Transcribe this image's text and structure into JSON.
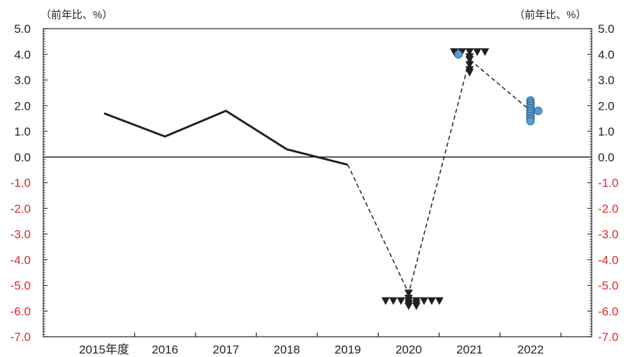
{
  "unit_label_left": "（前年比、%）",
  "unit_label_right": "（前年比、%）",
  "chart_data": {
    "type": "line",
    "x_categories": [
      "2015年度",
      "2016",
      "2017",
      "2018",
      "2019",
      "2020",
      "2021",
      "2022"
    ],
    "ylim": [
      -7.0,
      5.0
    ],
    "yticks": [
      5.0,
      4.0,
      3.0,
      2.0,
      1.0,
      0.0,
      -1.0,
      -2.0,
      -3.0,
      -4.0,
      -5.0,
      -6.0,
      -7.0
    ],
    "ytick_labels": [
      "5.0",
      "4.0",
      "3.0",
      "2.0",
      "1.0",
      "0.0",
      "-1.0",
      "-2.0",
      "-3.0",
      "-4.0",
      "-5.0",
      "-6.0",
      "-7.0"
    ],
    "colors": {
      "actual": "#231f20",
      "negative_tick": "#d7282f",
      "circle_fill": "#5b9bd5",
      "circle_stroke": "#2f5f8f",
      "triangle": "#231f20"
    },
    "series": [
      {
        "style": "solid",
        "x": [
          "2015年度",
          "2016",
          "2017",
          "2018",
          "2019"
        ],
        "values": [
          1.7,
          0.8,
          1.8,
          0.3,
          -0.3
        ]
      },
      {
        "style": "dashed",
        "x": [
          "2019",
          "2020",
          "2021",
          "2022"
        ],
        "values": [
          -0.3,
          -5.3,
          3.8,
          1.8
        ]
      }
    ],
    "triangle_markers": [
      {
        "x": "2020",
        "values": [
          -5.3,
          -5.5,
          -5.6,
          -5.6,
          -5.6,
          -5.6,
          -5.6,
          -5.6,
          -5.6,
          -5.6,
          -5.7,
          -5.7,
          -5.8,
          -5.8
        ]
      },
      {
        "x": "2021",
        "values": [
          4.1,
          4.1,
          4.1,
          4.1,
          4.1,
          3.9,
          3.8,
          3.6,
          3.4,
          3.3
        ]
      },
      {
        "x": "2022",
        "values": [
          1.5
        ]
      }
    ],
    "circle_markers": [
      {
        "x": "2021",
        "values": [
          4.0
        ]
      },
      {
        "x": "2022",
        "values": [
          2.2,
          2.1,
          2.0,
          1.9,
          1.8,
          1.8,
          1.7,
          1.6,
          1.5,
          1.4
        ]
      }
    ]
  }
}
